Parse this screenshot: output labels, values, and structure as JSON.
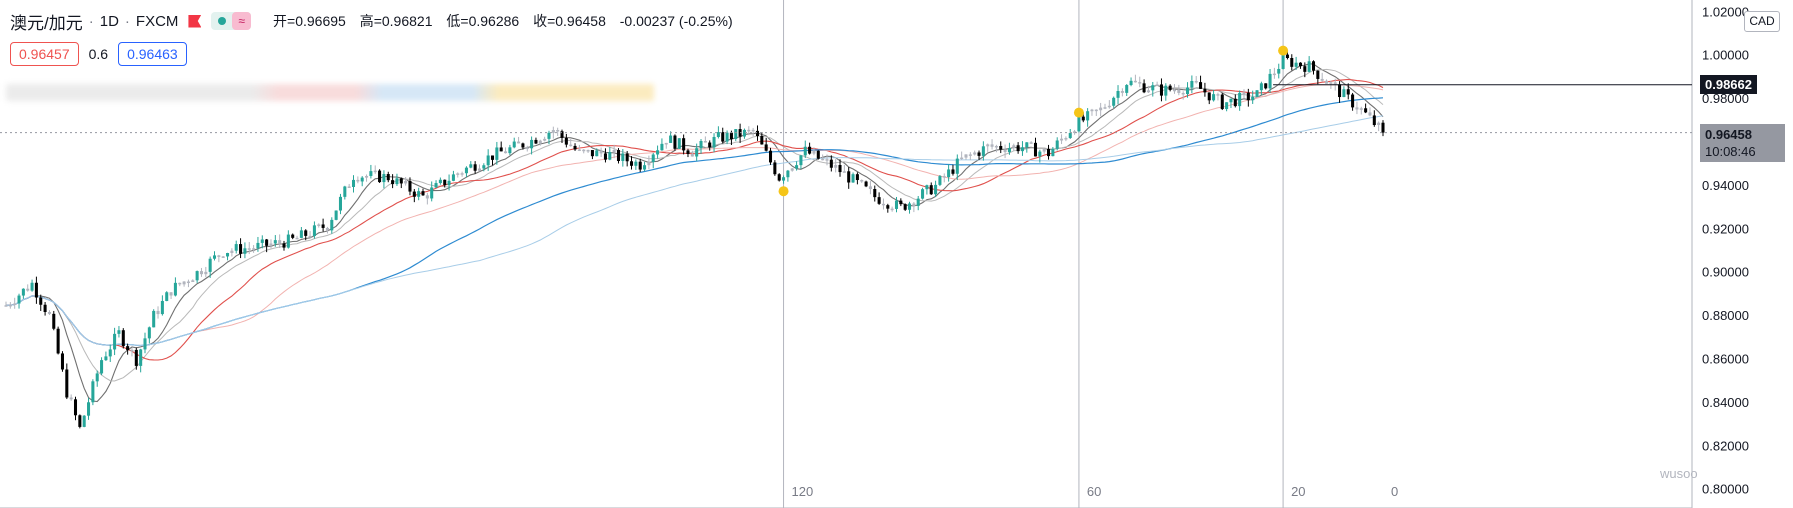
{
  "header": {
    "symbol": "澳元/加元",
    "interval": "1D",
    "exchange": "FXCM",
    "ind_symbol": "≈",
    "open": "开=0.96695",
    "high": "高=0.96821",
    "low": "低=0.96286",
    "close": "收=0.96458",
    "change": "-0.00237 (-0.25%)"
  },
  "quote": {
    "sell": "0.96457",
    "spread": "0.6",
    "buy": "0.96463"
  },
  "axis": {
    "currency": "CAD"
  },
  "labels": {
    "trendline_price": "0.98662",
    "current_price": "0.96458",
    "countdown": "10:08:46"
  },
  "watermark": "wusoo",
  "colors": {
    "up": "#26a69a",
    "down": "#000000",
    "neutral": "#b2b5be",
    "ma_red": "#ef5350",
    "ma_blue": "#2196f3",
    "marker": "#f5c518"
  },
  "chart_data": {
    "type": "candlestick",
    "y_ticks": [
      "1.02000",
      "1.00000",
      "0.98000",
      "0.96000",
      "0.94000",
      "0.92000",
      "0.90000",
      "0.88000",
      "0.86000",
      "0.84000",
      "0.82000",
      "0.80000"
    ],
    "ylim": [
      0.798,
      1.022
    ],
    "x_ticks": [
      {
        "label": "120",
        "bar": 179
      },
      {
        "label": "60",
        "bar": 247
      },
      {
        "label": "20",
        "bar": 294
      },
      {
        "label": "0",
        "bar": 317
      }
    ],
    "trendline": 0.98662,
    "last_close": 0.96458,
    "waypoints": [
      [
        0,
        0.885
      ],
      [
        6,
        0.895
      ],
      [
        10,
        0.88
      ],
      [
        14,
        0.845
      ],
      [
        17,
        0.828
      ],
      [
        22,
        0.86
      ],
      [
        26,
        0.872
      ],
      [
        30,
        0.86
      ],
      [
        34,
        0.88
      ],
      [
        38,
        0.892
      ],
      [
        44,
        0.9
      ],
      [
        50,
        0.91
      ],
      [
        58,
        0.912
      ],
      [
        66,
        0.915
      ],
      [
        74,
        0.922
      ],
      [
        80,
        0.945
      ],
      [
        88,
        0.944
      ],
      [
        96,
        0.935
      ],
      [
        104,
        0.946
      ],
      [
        112,
        0.954
      ],
      [
        120,
        0.96
      ],
      [
        126,
        0.966
      ],
      [
        132,
        0.955
      ],
      [
        138,
        0.955
      ],
      [
        146,
        0.95
      ],
      [
        152,
        0.962
      ],
      [
        158,
        0.956
      ],
      [
        164,
        0.962
      ],
      [
        172,
        0.965
      ],
      [
        178,
        0.944
      ],
      [
        184,
        0.956
      ],
      [
        192,
        0.947
      ],
      [
        200,
        0.935
      ],
      [
        206,
        0.93
      ],
      [
        214,
        0.94
      ],
      [
        220,
        0.952
      ],
      [
        226,
        0.958
      ],
      [
        234,
        0.958
      ],
      [
        240,
        0.955
      ],
      [
        246,
        0.968
      ],
      [
        252,
        0.975
      ],
      [
        258,
        0.988
      ],
      [
        266,
        0.984
      ],
      [
        274,
        0.986
      ],
      [
        280,
        0.978
      ],
      [
        288,
        0.982
      ],
      [
        294,
        0.998
      ],
      [
        300,
        0.995
      ],
      [
        306,
        0.985
      ],
      [
        312,
        0.975
      ],
      [
        317,
        0.9646
      ]
    ],
    "ma_series": [
      {
        "period": 8,
        "color": "#707070",
        "width": 1.1
      },
      {
        "period": 14,
        "color": "#b9b9b9",
        "width": 1
      },
      {
        "period": 26,
        "color": "#e0504c",
        "width": 1.1
      },
      {
        "period": 45,
        "color": "#f2b3b0",
        "width": 1
      },
      {
        "period": 80,
        "color": "#2e8bd1",
        "width": 1.2
      },
      {
        "period": 110,
        "color": "#a8cde8",
        "width": 1
      }
    ]
  }
}
